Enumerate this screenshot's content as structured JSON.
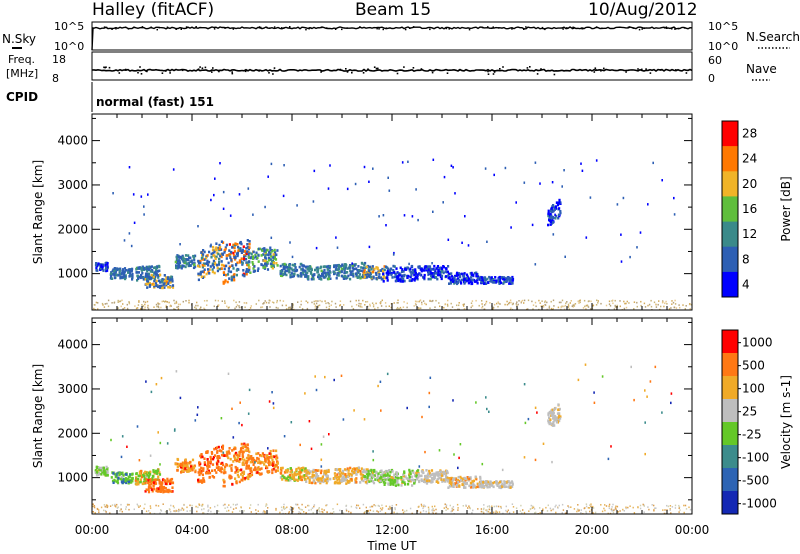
{
  "header": {
    "station": "Halley (fitACF)",
    "beam": "Beam 15",
    "date": "10/Aug/2012"
  },
  "status_panels": {
    "noise": {
      "left_label": "N.Sky",
      "right_label": "N.Search",
      "left_ticks": [
        "10^5",
        "10^0"
      ],
      "right_ticks": [
        "10^5",
        "10^0"
      ]
    },
    "frequency": {
      "left_label_1": "Freq.",
      "left_label_2": "[MHz]",
      "right_label": "Nave",
      "left_ticks": [
        "18",
        "8"
      ],
      "right_ticks": [
        "60",
        "0"
      ]
    },
    "cpid": {
      "label": "CPID",
      "text": "normal (fast) 151"
    }
  },
  "chart_data": [
    {
      "type": "heatmap",
      "panel": "power",
      "ylabel": "Slant Range [km]",
      "ylim": [
        180,
        4600
      ],
      "yticks": [
        1000,
        2000,
        3000,
        4000
      ],
      "xlim_hours": [
        0,
        24
      ],
      "xticks": [
        "00:00",
        "04:00",
        "08:00",
        "12:00",
        "16:00",
        "20:00",
        "00:00"
      ],
      "colorbar": {
        "label": "Power [dB]",
        "ticks": [
          "4",
          "8",
          "12",
          "16",
          "20",
          "24",
          "28"
        ],
        "colors": [
          "#0000ff",
          "#2d5fb4",
          "#3a8a8a",
          "#5fbe3c",
          "#f0b428",
          "#ff7800",
          "#ff0000"
        ]
      },
      "clusters": [
        {
          "t0": 0.1,
          "t1": 0.6,
          "r0": 1080,
          "r1": 1280,
          "tilt": 0,
          "c": [
            0,
            1
          ]
        },
        {
          "t0": 0.7,
          "t1": 1.6,
          "r0": 900,
          "r1": 1150,
          "tilt": 0,
          "c": [
            1,
            1
          ]
        },
        {
          "t0": 1.7,
          "t1": 2.7,
          "r0": 900,
          "r1": 1200,
          "tilt": 30,
          "c": [
            1,
            2
          ]
        },
        {
          "t0": 2.1,
          "t1": 3.2,
          "r0": 700,
          "r1": 1000,
          "tilt": 0,
          "c": [
            1,
            4
          ]
        },
        {
          "t0": 3.3,
          "t1": 4.1,
          "r0": 1150,
          "r1": 1450,
          "tilt": 0,
          "c": [
            1,
            2
          ]
        },
        {
          "t0": 4.2,
          "t1": 5.2,
          "r0": 1000,
          "r1": 1650,
          "tilt": 120,
          "c": [
            1,
            4
          ]
        },
        {
          "t0": 5.2,
          "t1": 6.3,
          "r0": 900,
          "r1": 1750,
          "tilt": 100,
          "c": [
            1,
            5
          ]
        },
        {
          "t0": 6.2,
          "t1": 7.4,
          "r0": 1100,
          "r1": 1600,
          "tilt": 60,
          "c": [
            1,
            3
          ]
        },
        {
          "t0": 7.5,
          "t1": 8.5,
          "r0": 950,
          "r1": 1250,
          "tilt": 0,
          "c": [
            1,
            2
          ]
        },
        {
          "t0": 8.5,
          "t1": 9.5,
          "r0": 900,
          "r1": 1200,
          "tilt": 0,
          "c": [
            1,
            2
          ]
        },
        {
          "t0": 9.6,
          "t1": 11.0,
          "r0": 900,
          "r1": 1250,
          "tilt": 30,
          "c": [
            1,
            2
          ]
        },
        {
          "t0": 10.8,
          "t1": 11.7,
          "r0": 900,
          "r1": 1200,
          "tilt": 0,
          "c": [
            1,
            4
          ]
        },
        {
          "t0": 11.6,
          "t1": 13.0,
          "r0": 850,
          "r1": 1200,
          "tilt": 0,
          "c": [
            0,
            1
          ]
        },
        {
          "t0": 13.0,
          "t1": 14.2,
          "r0": 900,
          "r1": 1200,
          "tilt": 0,
          "c": [
            0,
            1
          ]
        },
        {
          "t0": 14.2,
          "t1": 15.5,
          "r0": 800,
          "r1": 1050,
          "tilt": 0,
          "c": [
            0,
            1
          ]
        },
        {
          "t0": 15.5,
          "t1": 16.8,
          "r0": 800,
          "r1": 950,
          "tilt": 0,
          "c": [
            0,
            1
          ]
        },
        {
          "t0": 18.2,
          "t1": 18.7,
          "r0": 2200,
          "r1": 2600,
          "tilt": 120,
          "c": [
            0,
            1
          ]
        }
      ],
      "near_range_km": [
        200,
        420
      ],
      "near_range_hours": [
        0,
        24
      ]
    },
    {
      "type": "heatmap",
      "panel": "velocity",
      "ylabel": "Slant Range [km]",
      "ylim": [
        180,
        4600
      ],
      "yticks": [
        1000,
        2000,
        3000,
        4000
      ],
      "xlim_hours": [
        0,
        24
      ],
      "xlabel": "Time UT",
      "xticks": [
        "00:00",
        "04:00",
        "08:00",
        "12:00",
        "16:00",
        "20:00",
        "00:00"
      ],
      "colorbar": {
        "label": "Velocity [m s-1]",
        "ticks": [
          "1000",
          "500",
          "100",
          "25",
          "-25",
          "-100",
          "-500",
          "-1000"
        ],
        "colors": [
          "#1428b4",
          "#2d64b4",
          "#3c8c8c",
          "#64c828",
          "#bebebe",
          "#f0aa28",
          "#ff7814",
          "#ff0000"
        ]
      },
      "clusters": [
        {
          "t0": 0.1,
          "t1": 0.6,
          "r0": 1080,
          "r1": 1280,
          "tilt": 0,
          "c": [
            3,
            4
          ]
        },
        {
          "t0": 0.7,
          "t1": 1.6,
          "r0": 900,
          "r1": 1150,
          "tilt": 0,
          "c": [
            3,
            1
          ]
        },
        {
          "t0": 1.7,
          "t1": 2.7,
          "r0": 900,
          "r1": 1200,
          "tilt": 30,
          "c": [
            3,
            5
          ]
        },
        {
          "t0": 2.1,
          "t1": 3.2,
          "r0": 700,
          "r1": 1000,
          "tilt": 0,
          "c": [
            6,
            6
          ]
        },
        {
          "t0": 3.3,
          "t1": 4.1,
          "r0": 1150,
          "r1": 1450,
          "tilt": 0,
          "c": [
            5,
            6
          ]
        },
        {
          "t0": 4.2,
          "t1": 5.2,
          "r0": 1000,
          "r1": 1650,
          "tilt": 120,
          "c": [
            6,
            6
          ]
        },
        {
          "t0": 5.2,
          "t1": 6.3,
          "r0": 900,
          "r1": 1750,
          "tilt": 100,
          "c": [
            6,
            5
          ]
        },
        {
          "t0": 6.2,
          "t1": 7.4,
          "r0": 1100,
          "r1": 1600,
          "tilt": 60,
          "c": [
            6,
            5
          ]
        },
        {
          "t0": 7.5,
          "t1": 8.5,
          "r0": 950,
          "r1": 1250,
          "tilt": 0,
          "c": [
            5,
            3
          ]
        },
        {
          "t0": 8.5,
          "t1": 9.5,
          "r0": 900,
          "r1": 1200,
          "tilt": 0,
          "c": [
            5,
            4
          ]
        },
        {
          "t0": 9.6,
          "t1": 11.0,
          "r0": 900,
          "r1": 1250,
          "tilt": 30,
          "c": [
            5,
            4
          ]
        },
        {
          "t0": 10.8,
          "t1": 11.7,
          "r0": 900,
          "r1": 1200,
          "tilt": 0,
          "c": [
            3,
            4
          ]
        },
        {
          "t0": 11.6,
          "t1": 13.0,
          "r0": 850,
          "r1": 1200,
          "tilt": 0,
          "c": [
            3,
            4
          ]
        },
        {
          "t0": 13.0,
          "t1": 14.2,
          "r0": 900,
          "r1": 1200,
          "tilt": 0,
          "c": [
            4,
            4
          ]
        },
        {
          "t0": 14.2,
          "t1": 15.5,
          "r0": 800,
          "r1": 1050,
          "tilt": 0,
          "c": [
            4,
            5
          ]
        },
        {
          "t0": 15.5,
          "t1": 16.8,
          "r0": 800,
          "r1": 950,
          "tilt": 0,
          "c": [
            4,
            4
          ]
        },
        {
          "t0": 18.2,
          "t1": 18.7,
          "r0": 2200,
          "r1": 2600,
          "tilt": 120,
          "c": [
            4,
            4
          ]
        }
      ],
      "near_range_km": [
        200,
        420
      ],
      "near_range_hours": [
        0,
        24
      ]
    }
  ]
}
